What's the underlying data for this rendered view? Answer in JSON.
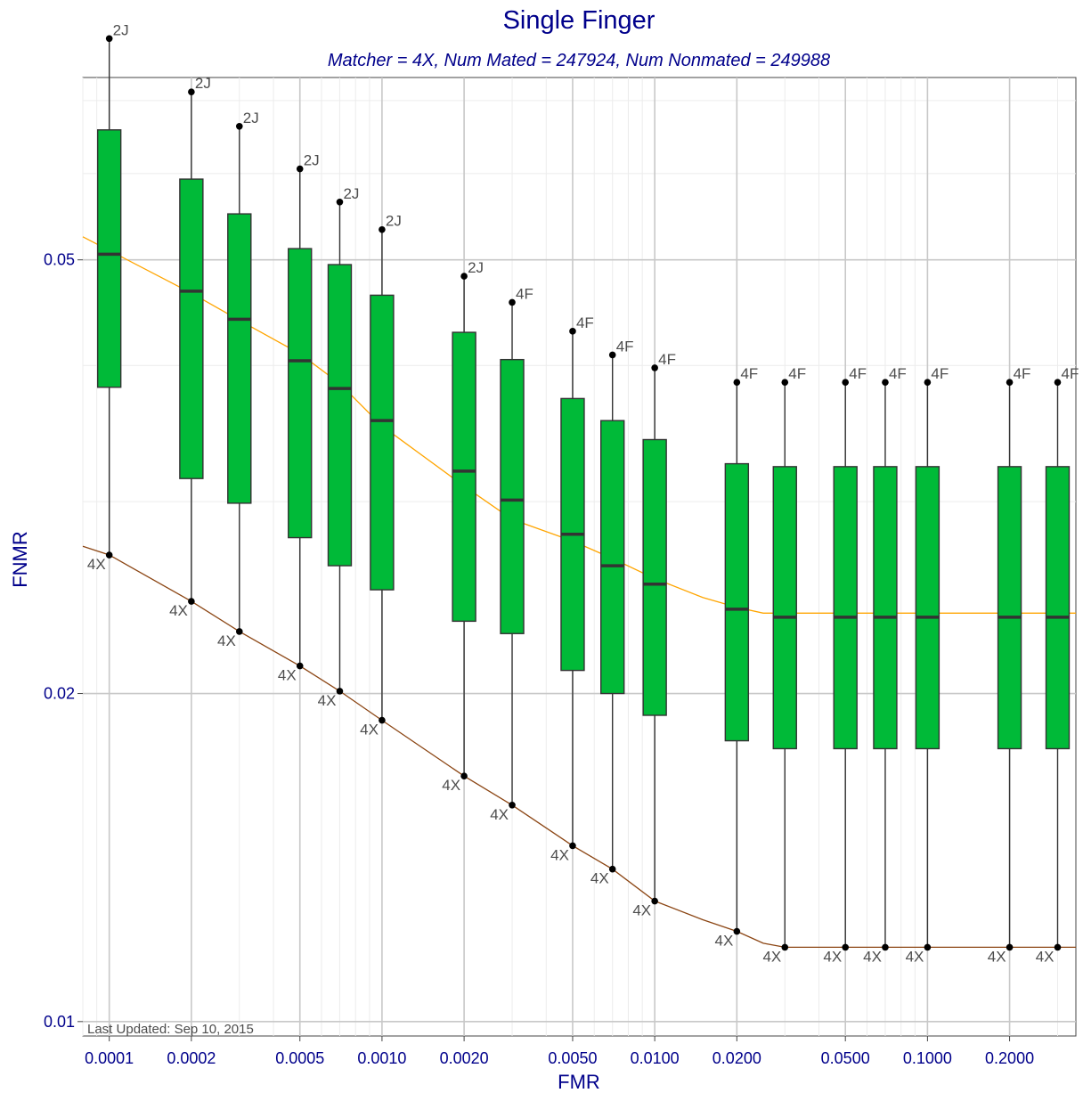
{
  "chart_data": {
    "type": "box",
    "title": "Single Finger",
    "subtitle": "Matcher = 4X,   Num Mated = 247924,   Num Nonmated = 249988",
    "xlabel": "FMR",
    "ylabel": "FNMR",
    "x_scale": "log",
    "y_scale": "log",
    "xlim": [
      8e-05,
      0.35
    ],
    "ylim": [
      0.0097,
      0.0735
    ],
    "x_ticks": [
      0.0001,
      0.0002,
      0.0005,
      0.001,
      0.002,
      0.005,
      0.01,
      0.02,
      0.05,
      0.1,
      0.2
    ],
    "x_tick_labels": [
      "0.0001",
      "0.0002",
      "0.0005",
      "0.0010",
      "0.0020",
      "0.0050",
      "0.0100",
      "0.0200",
      "0.0500",
      "0.1000",
      "0.2000"
    ],
    "y_ticks": [
      0.01,
      0.02,
      0.05
    ],
    "y_tick_labels": [
      "0.01",
      "0.02",
      "0.05"
    ],
    "grid": true,
    "box_color": "#00BA38",
    "upper_line_color": "#FFA500",
    "lower_line_color": "#8B4513",
    "boxes": [
      {
        "fmr": 0.0001,
        "min": 0.0268,
        "q1": 0.0382,
        "median": 0.0506,
        "q3": 0.0658,
        "max": 0.0798,
        "min_label": "4X",
        "max_label": "2J"
      },
      {
        "fmr": 0.0002,
        "min": 0.0243,
        "q1": 0.0315,
        "median": 0.0468,
        "q3": 0.0593,
        "max": 0.0713,
        "min_label": "4X",
        "max_label": "2J"
      },
      {
        "fmr": 0.0003,
        "min": 0.0228,
        "q1": 0.0299,
        "median": 0.0441,
        "q3": 0.0551,
        "max": 0.0663,
        "min_label": "4X",
        "max_label": "2J"
      },
      {
        "fmr": 0.0005,
        "min": 0.0212,
        "q1": 0.0278,
        "median": 0.0404,
        "q3": 0.0512,
        "max": 0.0606,
        "min_label": "4X",
        "max_label": "2J"
      },
      {
        "fmr": 0.0007,
        "min": 0.0201,
        "q1": 0.0262,
        "median": 0.0381,
        "q3": 0.0495,
        "max": 0.0565,
        "min_label": "4X",
        "max_label": "2J"
      },
      {
        "fmr": 0.001,
        "min": 0.0189,
        "q1": 0.0249,
        "median": 0.0356,
        "q3": 0.0464,
        "max": 0.0533,
        "min_label": "4X",
        "max_label": "2J"
      },
      {
        "fmr": 0.002,
        "min": 0.0168,
        "q1": 0.0233,
        "median": 0.032,
        "q3": 0.0429,
        "max": 0.0483,
        "min_label": "4X",
        "max_label": "2J"
      },
      {
        "fmr": 0.003,
        "min": 0.0158,
        "q1": 0.0227,
        "median": 0.0301,
        "q3": 0.0405,
        "max": 0.0457,
        "min_label": "4X",
        "max_label": "4F"
      },
      {
        "fmr": 0.005,
        "min": 0.0145,
        "q1": 0.021,
        "median": 0.028,
        "q3": 0.0373,
        "max": 0.043,
        "min_label": "4X",
        "max_label": "4F"
      },
      {
        "fmr": 0.007,
        "min": 0.0138,
        "q1": 0.02,
        "median": 0.0262,
        "q3": 0.0356,
        "max": 0.0409,
        "min_label": "4X",
        "max_label": "4F"
      },
      {
        "fmr": 0.01,
        "min": 0.0129,
        "q1": 0.0191,
        "median": 0.0252,
        "q3": 0.0342,
        "max": 0.0398,
        "min_label": "4X",
        "max_label": "4F"
      },
      {
        "fmr": 0.02,
        "min": 0.0121,
        "q1": 0.0181,
        "median": 0.0239,
        "q3": 0.0325,
        "max": 0.0386,
        "min_label": "4X",
        "max_label": "4F"
      },
      {
        "fmr": 0.03,
        "min": 0.0117,
        "q1": 0.0178,
        "median": 0.0235,
        "q3": 0.0323,
        "max": 0.0386,
        "min_label": "4X",
        "max_label": "4F"
      },
      {
        "fmr": 0.05,
        "min": 0.0117,
        "q1": 0.0178,
        "median": 0.0235,
        "q3": 0.0323,
        "max": 0.0386,
        "min_label": "4X",
        "max_label": "4F"
      },
      {
        "fmr": 0.07,
        "min": 0.0117,
        "q1": 0.0178,
        "median": 0.0235,
        "q3": 0.0323,
        "max": 0.0386,
        "min_label": "4X",
        "max_label": "4F"
      },
      {
        "fmr": 0.1,
        "min": 0.0117,
        "q1": 0.0178,
        "median": 0.0235,
        "q3": 0.0323,
        "max": 0.0386,
        "min_label": "4X",
        "max_label": "4F"
      },
      {
        "fmr": 0.2,
        "min": 0.0117,
        "q1": 0.0178,
        "median": 0.0235,
        "q3": 0.0323,
        "max": 0.0386,
        "min_label": "4X",
        "max_label": "4F"
      },
      {
        "fmr": 0.3,
        "min": 0.0117,
        "q1": 0.0178,
        "median": 0.0235,
        "q3": 0.0323,
        "max": 0.0386,
        "min_label": "4X",
        "max_label": "4F"
      }
    ],
    "upper_line": {
      "x": [
        8e-05,
        0.0001,
        0.0002,
        0.0003,
        0.0005,
        0.0007,
        0.001,
        0.002,
        0.003,
        0.005,
        0.007,
        0.01,
        0.015,
        0.02,
        0.025,
        0.03,
        0.05,
        0.1,
        0.2,
        0.35
      ],
      "y": [
        0.0525,
        0.051,
        0.0466,
        0.044,
        0.041,
        0.0385,
        0.0352,
        0.031,
        0.0289,
        0.0276,
        0.0266,
        0.0255,
        0.0245,
        0.024,
        0.0237,
        0.0237,
        0.0237,
        0.0237,
        0.0237,
        0.0237
      ]
    },
    "lower_line": {
      "x": [
        8e-05,
        0.0001,
        0.0002,
        0.0003,
        0.0005,
        0.0007,
        0.001,
        0.002,
        0.003,
        0.005,
        0.007,
        0.01,
        0.015,
        0.02,
        0.025,
        0.03,
        0.05,
        0.1,
        0.2,
        0.35
      ],
      "y": [
        0.0273,
        0.0268,
        0.0243,
        0.0228,
        0.0212,
        0.0201,
        0.0189,
        0.0168,
        0.0158,
        0.0145,
        0.0138,
        0.0129,
        0.0124,
        0.0121,
        0.0118,
        0.0117,
        0.0117,
        0.0117,
        0.0117,
        0.0117
      ]
    },
    "annotation": "Last Updated: Sep 10, 2015"
  }
}
